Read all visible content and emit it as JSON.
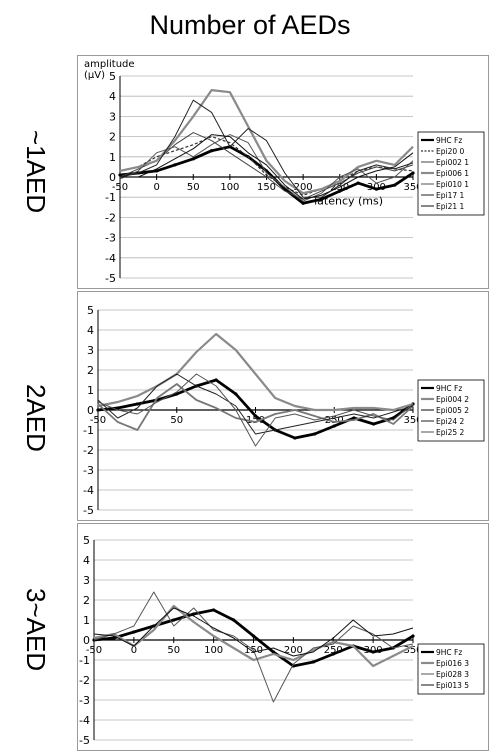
{
  "figure_title": "Number of AEDs",
  "chart_data": [
    {
      "type": "line",
      "side_label": "~1AED",
      "ylabel": "amplitude (μV)",
      "xlabel": "latency (ms)",
      "xlim": [
        -50,
        350
      ],
      "ylim": [
        -5,
        5
      ],
      "xticks": [
        -50,
        0,
        50,
        100,
        150,
        200,
        250,
        300,
        350
      ],
      "yticks": [
        5,
        4,
        3,
        2,
        1,
        0,
        -1,
        -2,
        -3,
        -4,
        -5
      ],
      "grid": true,
      "legend_position": "right",
      "series": [
        {
          "name": "9HC Fz",
          "style": "thick",
          "color": "#000000",
          "x": [
            -50,
            -25,
            0,
            25,
            50,
            75,
            100,
            125,
            150,
            175,
            200,
            225,
            250,
            275,
            300,
            325,
            350
          ],
          "y": [
            0.1,
            0.2,
            0.3,
            0.6,
            0.9,
            1.3,
            1.5,
            1.0,
            0.3,
            -0.6,
            -1.3,
            -1.1,
            -0.7,
            -0.3,
            -0.6,
            -0.4,
            0.2
          ]
        },
        {
          "name": "Epi20 0",
          "style": "dashed",
          "color": "#333333",
          "x": [
            -50,
            -25,
            0,
            25,
            50,
            75,
            100,
            125,
            150,
            175,
            200,
            225,
            250,
            275,
            300,
            325,
            350
          ],
          "y": [
            0.3,
            0.5,
            1.0,
            1.3,
            1.6,
            2.0,
            1.7,
            1.0,
            0.1,
            -0.5,
            -0.9,
            -0.6,
            -0.2,
            0.3,
            0.5,
            0.4,
            0.3
          ]
        },
        {
          "name": "Epi002 1",
          "style": "thin",
          "color": "#444444",
          "x": [
            -50,
            -25,
            0,
            25,
            50,
            75,
            100,
            125,
            150,
            175,
            200,
            225,
            250,
            275,
            300,
            325,
            350
          ],
          "y": [
            0.0,
            0.4,
            0.8,
            1.6,
            2.2,
            1.8,
            1.2,
            0.6,
            0.0,
            -0.7,
            -1.1,
            -0.7,
            -0.3,
            0.2,
            0.5,
            0.3,
            0.6
          ]
        },
        {
          "name": "Epi006 1",
          "style": "gray",
          "color": "#8a8a8a",
          "x": [
            -50,
            -25,
            0,
            25,
            50,
            75,
            100,
            125,
            150,
            175,
            200,
            225,
            250,
            275,
            300,
            325,
            350
          ],
          "y": [
            0.3,
            0.5,
            0.8,
            1.8,
            3.0,
            4.3,
            4.2,
            2.5,
            0.8,
            -0.2,
            -0.8,
            -0.6,
            -0.2,
            0.5,
            0.8,
            0.6,
            1.5
          ]
        },
        {
          "name": "Epi010 1",
          "style": "thin",
          "color": "#555555",
          "x": [
            -50,
            -25,
            0,
            25,
            50,
            75,
            100,
            125,
            150,
            175,
            200,
            225,
            250,
            275,
            300,
            325,
            350
          ],
          "y": [
            -0.1,
            0.3,
            1.2,
            1.5,
            1.0,
            1.6,
            2.1,
            1.7,
            0.2,
            -0.5,
            -1.2,
            -0.8,
            0.0,
            0.4,
            -0.3,
            0.0,
            0.8
          ]
        },
        {
          "name": "Epi17 1",
          "style": "thin",
          "color": "#222222",
          "x": [
            -50,
            -25,
            0,
            25,
            50,
            75,
            100,
            125,
            150,
            175,
            200,
            225,
            250,
            275,
            300,
            325,
            350
          ],
          "y": [
            0.0,
            0.2,
            0.6,
            2.0,
            3.8,
            3.2,
            1.5,
            2.4,
            1.8,
            0.2,
            -1.0,
            -1.0,
            -0.4,
            0.3,
            0.6,
            0.4,
            0.7
          ]
        },
        {
          "name": "Epi21 1",
          "style": "thin",
          "color": "#111111",
          "x": [
            -50,
            -25,
            0,
            25,
            50,
            75,
            100,
            125,
            150,
            175,
            200,
            225,
            250,
            275,
            300,
            325,
            350
          ],
          "y": [
            0.0,
            0.0,
            0.4,
            0.9,
            1.4,
            2.1,
            2.0,
            1.2,
            0.6,
            -0.4,
            -1.1,
            -0.9,
            -0.5,
            0.0,
            0.3,
            0.5,
            1.2
          ]
        }
      ]
    },
    {
      "type": "line",
      "side_label": "2AED",
      "ylabel": "",
      "xlabel": "",
      "xlim": [
        -50,
        350
      ],
      "ylim": [
        -5,
        5
      ],
      "xticks": [
        -50,
        50,
        150,
        250,
        350
      ],
      "yticks": [
        5,
        4,
        3,
        2,
        1,
        0,
        -1,
        -2,
        -3,
        -4,
        -5
      ],
      "grid": true,
      "legend_position": "right",
      "series": [
        {
          "name": "9HC Fz",
          "style": "thick",
          "color": "#000000",
          "x": [
            -50,
            -25,
            0,
            25,
            50,
            75,
            100,
            125,
            150,
            175,
            200,
            225,
            250,
            275,
            300,
            325,
            350
          ],
          "y": [
            0.0,
            0.1,
            0.3,
            0.5,
            0.8,
            1.2,
            1.5,
            0.8,
            -0.3,
            -1.0,
            -1.4,
            -1.2,
            -0.8,
            -0.4,
            -0.7,
            -0.4,
            0.3
          ]
        },
        {
          "name": "Epi004 2",
          "style": "gray",
          "color": "#8a8a8a",
          "x": [
            -50,
            -25,
            0,
            25,
            50,
            75,
            100,
            125,
            150,
            175,
            200,
            225,
            250,
            275,
            300,
            325,
            350
          ],
          "y": [
            0.2,
            0.4,
            0.7,
            1.2,
            1.8,
            2.9,
            3.8,
            3.0,
            1.8,
            0.6,
            0.2,
            0.0,
            0.0,
            0.1,
            0.1,
            0.0,
            0.3
          ]
        },
        {
          "name": "Epi005 2",
          "style": "gray2",
          "color": "#777777",
          "x": [
            -50,
            -25,
            0,
            25,
            50,
            75,
            100,
            125,
            150,
            175,
            200,
            225,
            250,
            275,
            300,
            325,
            350
          ],
          "y": [
            0.3,
            -0.6,
            -1.0,
            0.6,
            1.3,
            0.5,
            0.1,
            -0.4,
            -0.6,
            -0.2,
            0.0,
            -0.3,
            -0.6,
            -0.5,
            -0.2,
            -0.7,
            0.2
          ]
        },
        {
          "name": "Epi24 2",
          "style": "thin",
          "color": "#222222",
          "x": [
            -50,
            -25,
            0,
            25,
            50,
            75,
            100,
            125,
            150,
            175,
            200,
            225,
            250,
            275,
            300,
            325,
            350
          ],
          "y": [
            0.5,
            -0.4,
            0.1,
            1.2,
            1.8,
            1.2,
            0.8,
            0.2,
            -1.2,
            -1.0,
            -0.8,
            -0.6,
            -0.4,
            -0.2,
            -0.4,
            -0.1,
            0.2
          ]
        },
        {
          "name": "Epi25 2",
          "style": "thin",
          "color": "#555555",
          "x": [
            -50,
            -25,
            0,
            25,
            50,
            75,
            100,
            125,
            150,
            175,
            200,
            225,
            250,
            275,
            300,
            325,
            350
          ],
          "y": [
            0.4,
            0.0,
            -0.2,
            0.4,
            0.9,
            1.8,
            1.2,
            0.0,
            -1.8,
            -0.4,
            -0.2,
            -0.5,
            -0.3,
            0.0,
            -0.3,
            -0.5,
            0.3
          ]
        }
      ]
    },
    {
      "type": "line",
      "side_label": "3~AED",
      "ylabel": "",
      "xlabel": "",
      "xlim": [
        -50,
        350
      ],
      "ylim": [
        -5,
        5
      ],
      "xticks": [
        -50,
        0,
        50,
        100,
        150,
        200,
        250,
        300,
        350
      ],
      "yticks": [
        5,
        4,
        3,
        2,
        1,
        0,
        -1,
        -2,
        -3,
        -4,
        -5
      ],
      "grid": true,
      "legend_position": "right",
      "series": [
        {
          "name": "9HC Fz",
          "style": "thick",
          "color": "#000000",
          "x": [
            -50,
            -25,
            0,
            25,
            50,
            75,
            100,
            125,
            150,
            175,
            200,
            225,
            250,
            275,
            300,
            325,
            350
          ],
          "y": [
            0.0,
            0.1,
            0.4,
            0.7,
            1.0,
            1.3,
            1.5,
            1.0,
            0.2,
            -0.6,
            -1.3,
            -1.1,
            -0.7,
            -0.3,
            -0.6,
            -0.4,
            0.2
          ]
        },
        {
          "name": "Epi016 3",
          "style": "gray",
          "color": "#8a8a8a",
          "x": [
            -50,
            -25,
            0,
            25,
            50,
            75,
            100,
            125,
            150,
            175,
            200,
            225,
            250,
            275,
            300,
            325,
            350
          ],
          "y": [
            0.1,
            0.3,
            -0.3,
            0.5,
            1.7,
            0.9,
            0.2,
            -0.4,
            -1.0,
            -0.7,
            -1.0,
            -0.5,
            -0.1,
            -0.3,
            -1.3,
            -0.8,
            -0.3
          ]
        },
        {
          "name": "Epi028 3",
          "style": "thin",
          "color": "#555555",
          "x": [
            -50,
            -25,
            0,
            25,
            50,
            75,
            100,
            125,
            150,
            175,
            200,
            225,
            250,
            275,
            300,
            325,
            350
          ],
          "y": [
            0.0,
            0.3,
            0.7,
            2.4,
            0.7,
            1.6,
            0.5,
            0.2,
            -0.5,
            -3.1,
            -1.2,
            -0.4,
            -0.2,
            0.7,
            0.3,
            -0.4,
            -0.2
          ]
        },
        {
          "name": "Epi013 5",
          "style": "thin",
          "color": "#111111",
          "x": [
            -50,
            -25,
            0,
            25,
            50,
            75,
            100,
            125,
            150,
            175,
            200,
            225,
            250,
            275,
            300,
            325,
            350
          ],
          "y": [
            0.3,
            0.2,
            -0.3,
            0.7,
            1.6,
            1.2,
            0.6,
            0.1,
            -0.6,
            -0.4,
            -0.8,
            -0.6,
            0.1,
            1.0,
            0.2,
            0.3,
            0.6
          ]
        }
      ]
    }
  ]
}
